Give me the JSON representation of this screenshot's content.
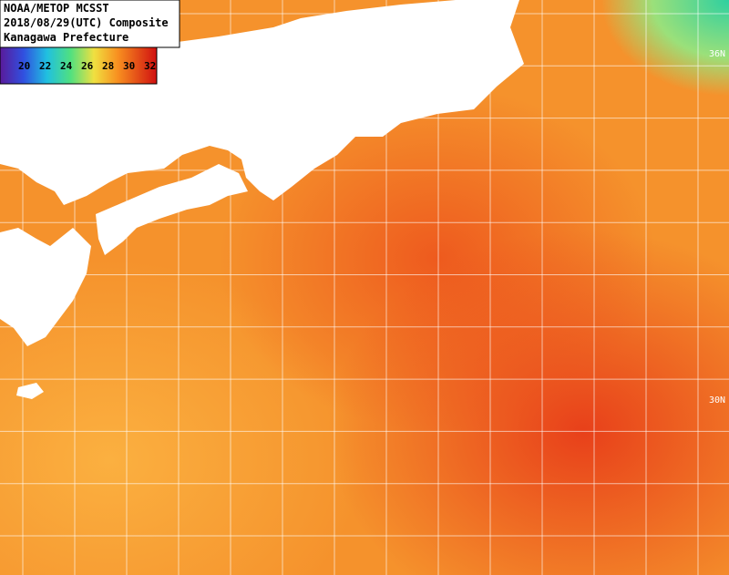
{
  "header": {
    "lines": [
      "NOAA/METOP MCSST",
      "2018/08/29(UTC) Composite",
      "Kanagawa Prefecture"
    ]
  },
  "colorbar": {
    "ticks": [
      20,
      22,
      24,
      26,
      28,
      30,
      32
    ]
  },
  "lat_labels": [
    "36N",
    "30N"
  ]
}
